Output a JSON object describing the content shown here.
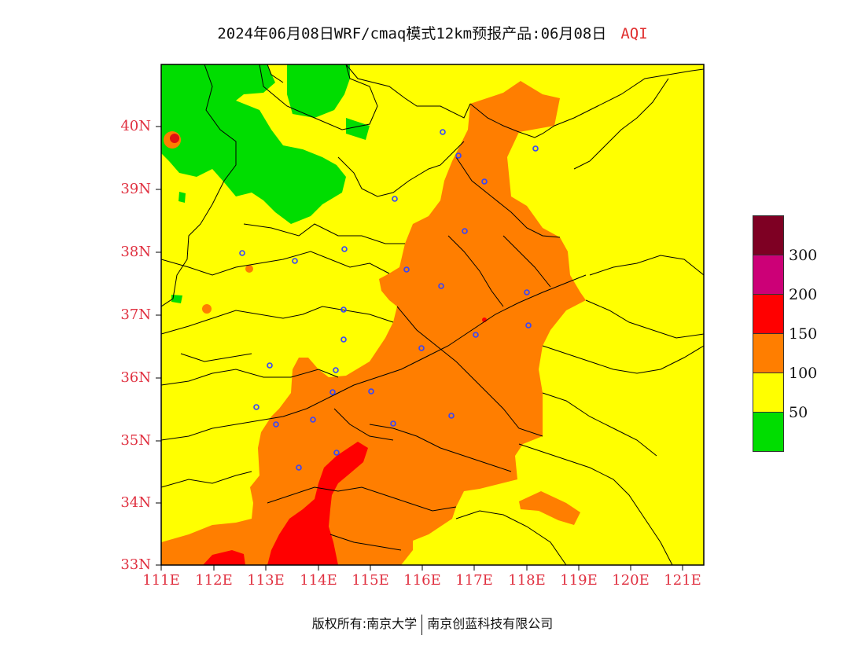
{
  "title": {
    "main": "2024年06月08日WRF/cmaq模式12km预报产品:06月08日",
    "variable": "AQI"
  },
  "map": {
    "lat_labels": [
      "40N",
      "39N",
      "38N",
      "37N",
      "36N",
      "35N",
      "34N",
      "33N"
    ],
    "lon_labels": [
      "111E",
      "112E",
      "113E",
      "114E",
      "115E",
      "116E",
      "117E",
      "118E",
      "119E",
      "120E",
      "121E"
    ],
    "lat_range": [
      33,
      41
    ],
    "lon_range": [
      111,
      121.4
    ],
    "colors": {
      "good": "#00dd00",
      "moderate": "#ffff00",
      "unhealthy_sensitive": "#ff7e00",
      "unhealthy": "#ff0000",
      "very_unhealthy": "#cc0077",
      "hazardous": "#7e0023",
      "city_marker": "#3344ff",
      "boundary": "#000000",
      "label": "#e03040"
    }
  },
  "legend": {
    "labels": [
      "300",
      "200",
      "150",
      "100",
      "50"
    ],
    "colors": [
      "#7e0023",
      "#cc0077",
      "#ff0000",
      "#ff7e00",
      "#ffff00",
      "#00dd00"
    ]
  },
  "footer": {
    "left": "版权所有:南京大学",
    "right": "南京创蓝科技有限公司"
  }
}
